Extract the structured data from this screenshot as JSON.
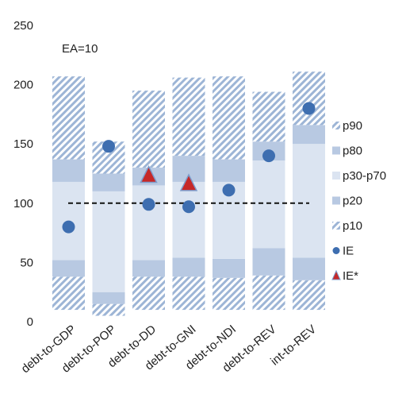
{
  "chart_data": {
    "type": "bar",
    "annotation": "EA=10",
    "categories": [
      "debt-to-GDP",
      "debt-to-POP",
      "debt-to-DD",
      "debt-to-GNI",
      "debt-to-NDI",
      "debt-to-REV",
      "int-to-REV"
    ],
    "ylim": [
      0,
      250
    ],
    "yticks": [
      0,
      50,
      100,
      150,
      200,
      250
    ],
    "reference_line": 100,
    "percentile_bands": [
      {
        "category": "debt-to-GDP",
        "min": 10,
        "p10": 38,
        "p20": 52,
        "p70": 118,
        "p80": 137,
        "p90": 207
      },
      {
        "category": "debt-to-POP",
        "min": 5,
        "p10": 15,
        "p20": 25,
        "p70": 110,
        "p80": 125,
        "p90": 152
      },
      {
        "category": "debt-to-DD",
        "min": 10,
        "p10": 38,
        "p20": 52,
        "p70": 115,
        "p80": 130,
        "p90": 195
      },
      {
        "category": "debt-to-GNI",
        "min": 10,
        "p10": 38,
        "p20": 54,
        "p70": 118,
        "p80": 140,
        "p90": 206
      },
      {
        "category": "debt-to-NDI",
        "min": 10,
        "p10": 37,
        "p20": 53,
        "p70": 118,
        "p80": 137,
        "p90": 207
      },
      {
        "category": "debt-to-REV",
        "min": 10,
        "p10": 39,
        "p20": 62,
        "p70": 136,
        "p80": 152,
        "p90": 194
      },
      {
        "category": "int-to-REV",
        "min": 10,
        "p10": 35,
        "p20": 54,
        "p70": 150,
        "p80": 166,
        "p90": 211
      }
    ],
    "series": [
      {
        "name": "IE",
        "marker": "circle",
        "values": [
          80,
          148,
          99,
          97,
          111,
          140,
          180
        ]
      },
      {
        "name": "IE*",
        "marker": "triangle",
        "values": [
          null,
          null,
          124,
          117,
          null,
          null,
          null
        ]
      }
    ],
    "legend": {
      "placement": "right",
      "items": [
        {
          "label": "p90",
          "swatch": "hatch"
        },
        {
          "label": "p80",
          "swatch": "dark"
        },
        {
          "label": "p30-p70",
          "swatch": "light"
        },
        {
          "label": "p20",
          "swatch": "dark"
        },
        {
          "label": "p10",
          "swatch": "hatch"
        },
        {
          "label": "IE",
          "swatch": "circle"
        },
        {
          "label": "IE*",
          "swatch": "triangle"
        }
      ]
    },
    "colors": {
      "hatch": "#9db5d6",
      "dark_band": "#b8c9e2",
      "light_band": "#dbe4f1",
      "ie_marker": "#3e6eb0",
      "ie_star_marker": "#c62828",
      "reference_line": "#111111"
    }
  }
}
